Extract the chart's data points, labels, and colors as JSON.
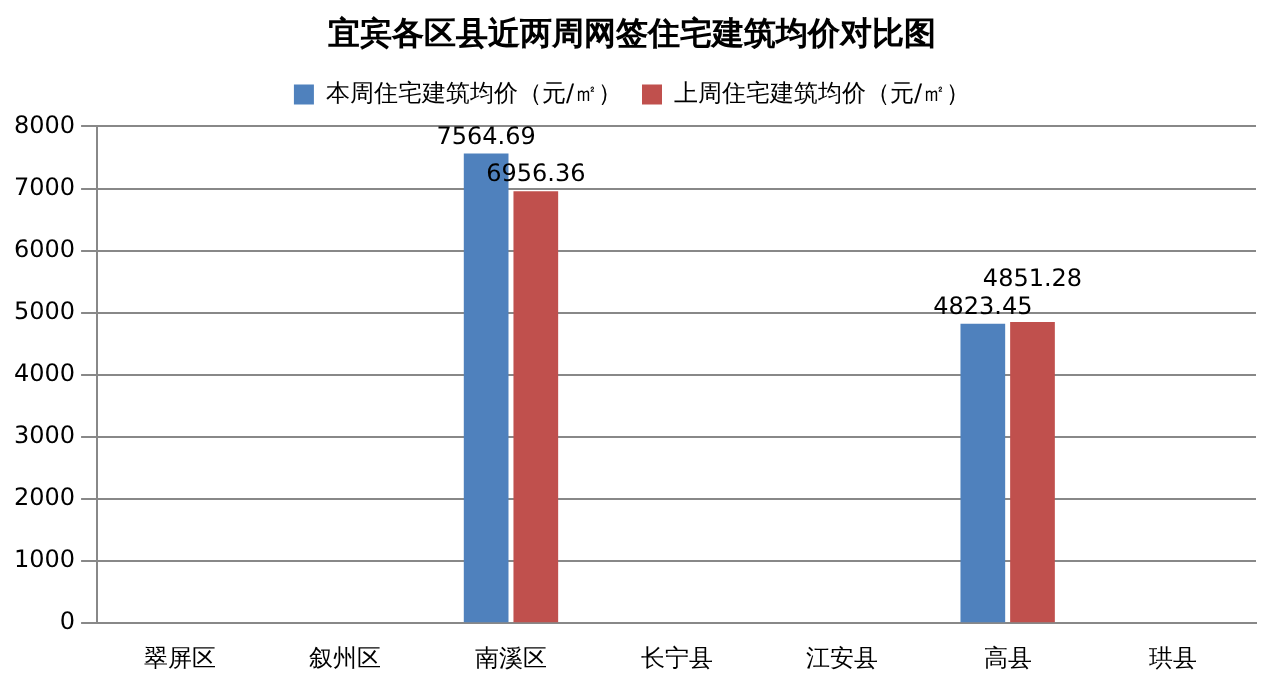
{
  "chart_data": {
    "type": "bar",
    "title": "宜宾各区县近两周网签住宅建筑均价对比图",
    "categories": [
      "翠屏区",
      "叙州区",
      "南溪区",
      "长宁县",
      "江安县",
      "高县",
      "珙县"
    ],
    "series": [
      {
        "name": "本周住宅建筑均价（元/㎡）",
        "color": "#4f81bd",
        "values": [
          null,
          null,
          7564.69,
          null,
          null,
          4823.45,
          null
        ]
      },
      {
        "name": "上周住宅建筑均价（元/㎡）",
        "color": "#c0504d",
        "values": [
          null,
          null,
          6956.36,
          null,
          null,
          4851.28,
          null
        ]
      }
    ],
    "ylim": [
      0,
      8000
    ],
    "yticks": [
      0,
      1000,
      2000,
      3000,
      4000,
      5000,
      6000,
      7000,
      8000
    ],
    "grid": "y",
    "legend": "top",
    "data_labels": true
  }
}
